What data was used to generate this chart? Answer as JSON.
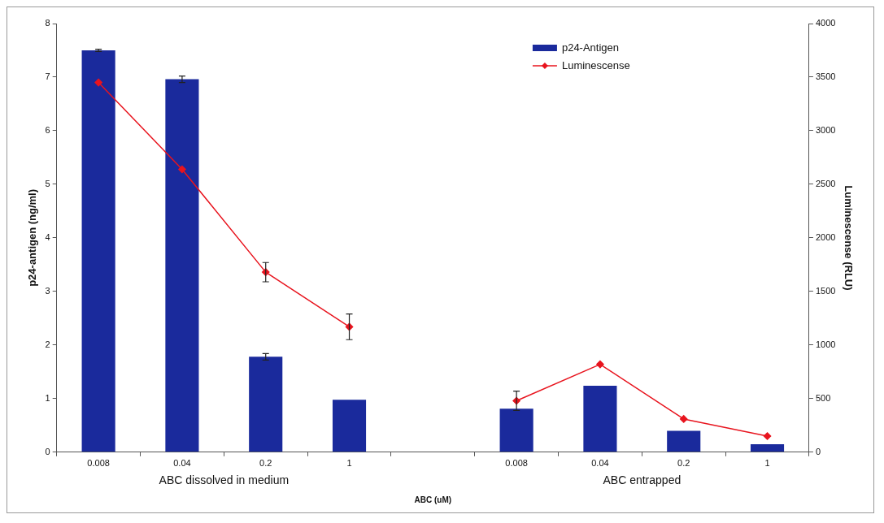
{
  "chart_data": {
    "type": "bar",
    "xlabel": "ABC (uM)",
    "ylabel": "p24-antigen (ng/ml)",
    "y2label": "Luminescense (RLU)",
    "categories": [
      "0.008",
      "0.04",
      "0.2",
      "1",
      null,
      "0.008",
      "0.04",
      "0.2",
      "1"
    ],
    "series": [
      {
        "name": "p24-Antigen",
        "color": "#1a2a9c",
        "values": [
          7.5,
          6.96,
          1.78,
          0.98,
          null,
          0.81,
          1.24,
          0.4,
          0.15
        ],
        "errors": [
          0.02,
          0.06,
          0.06,
          null,
          null,
          null,
          null,
          null,
          null
        ]
      },
      {
        "name": "Luminescense",
        "type": "line",
        "axis": "y2",
        "color": "#e8141e",
        "values": [
          3450,
          2640,
          1680,
          1170,
          null,
          480,
          820,
          310,
          150
        ],
        "errors": [
          null,
          null,
          90,
          120,
          null,
          90,
          null,
          null,
          null
        ]
      }
    ],
    "ylim": [
      0,
      8
    ],
    "yticks": [
      0,
      1,
      2,
      3,
      4,
      5,
      6,
      7,
      8
    ],
    "y2lim": [
      0,
      4000
    ],
    "y2ticks": [
      0,
      500,
      1000,
      1500,
      2000,
      2500,
      3000,
      3500,
      4000
    ],
    "annotations": [
      "ABC dissolved in medium",
      "ABC entrapped"
    ],
    "legend": "top right",
    "marker": "diamond",
    "grid": false
  }
}
